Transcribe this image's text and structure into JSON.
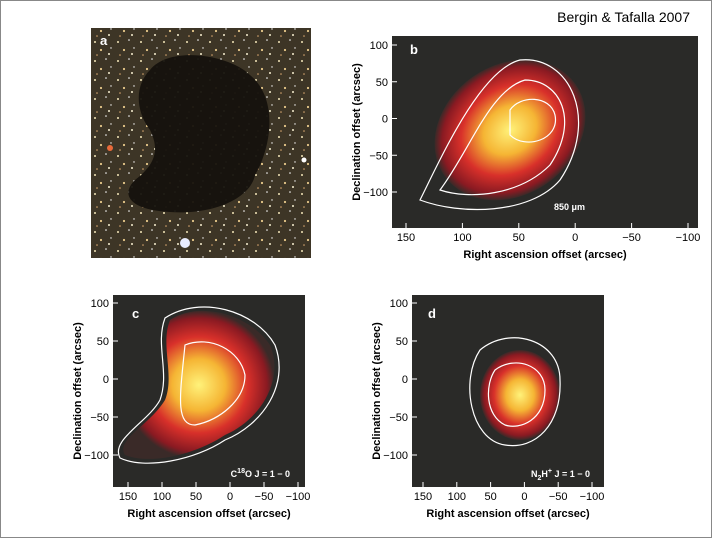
{
  "citation": "Bergin & Tafalla 2007",
  "panels": [
    {
      "label": "a"
    },
    {
      "label": "b",
      "ylabel": "Declination offset (arcsec)",
      "xlabel": "Right ascension offset (arcsec)",
      "xticks": [
        "150",
        "100",
        "50",
        "0",
        "−50",
        "−100"
      ],
      "yticks": [
        "100",
        "50",
        "0",
        "−50",
        "−100"
      ],
      "annotation": [
        "850 μm"
      ]
    },
    {
      "label": "c",
      "ylabel": "Declination offset (arcsec)",
      "xlabel": "Right ascension offset (arcsec)",
      "xticks": [
        "150",
        "100",
        "50",
        "0",
        "−50",
        "−100"
      ],
      "yticks": [
        "100",
        "50",
        "0",
        "−50",
        "−100"
      ],
      "annotation": [
        "C",
        "18",
        "O J = 1 − 0"
      ]
    },
    {
      "label": "d",
      "ylabel": "Declination offset (arcsec)",
      "xlabel": "Right ascension offset (arcsec)",
      "xticks": [
        "150",
        "100",
        "50",
        "0",
        "−50",
        "−100"
      ],
      "yticks": [
        "100",
        "50",
        "0",
        "−50",
        "−100"
      ],
      "annotation": [
        "N",
        "2",
        "H",
        "+",
        " J = 1 − 0"
      ]
    }
  ]
}
